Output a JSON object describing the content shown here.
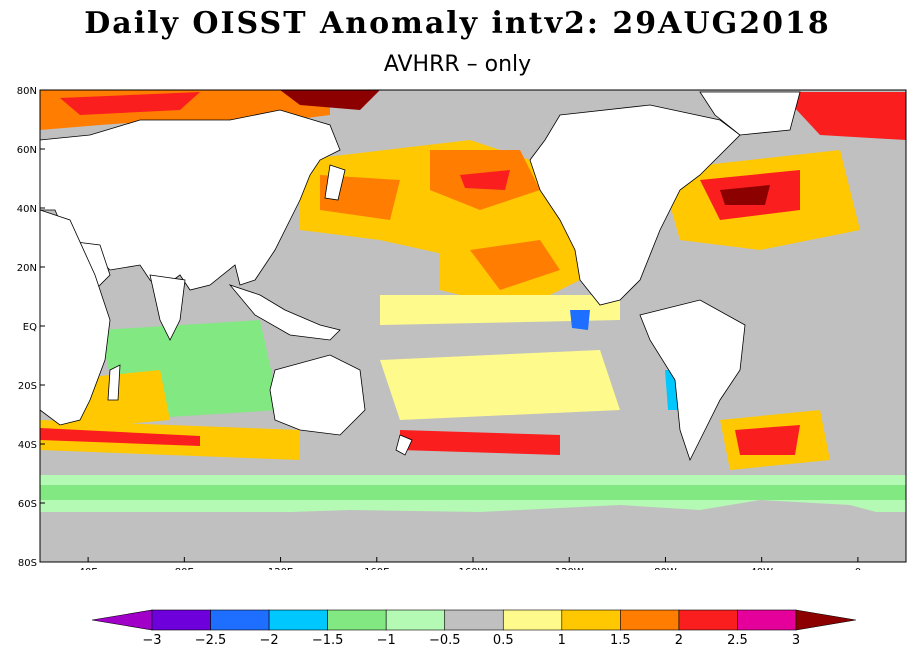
{
  "title": "Daily OISST Anomaly intv2: 29AUG2018",
  "subtitle": "AVHRR – only",
  "map": {
    "lat_range": [
      -80,
      80
    ],
    "lon_start": 20,
    "lon_end": 380,
    "lat_ticks": [
      {
        "value": 80,
        "label": "80N"
      },
      {
        "value": 60,
        "label": "60N"
      },
      {
        "value": 40,
        "label": "40N"
      },
      {
        "value": 20,
        "label": "20N"
      },
      {
        "value": 0,
        "label": "EQ"
      },
      {
        "value": -20,
        "label": "20S"
      },
      {
        "value": -40,
        "label": "40S"
      },
      {
        "value": -60,
        "label": "60S"
      },
      {
        "value": -80,
        "label": "80S"
      }
    ],
    "lon_ticks": [
      {
        "value": 40,
        "label": "40E"
      },
      {
        "value": 80,
        "label": "80E"
      },
      {
        "value": 120,
        "label": "120E"
      },
      {
        "value": 160,
        "label": "160E"
      },
      {
        "value": 200,
        "label": "160W"
      },
      {
        "value": 240,
        "label": "120W"
      },
      {
        "value": 280,
        "label": "80W"
      },
      {
        "value": 320,
        "label": "40W"
      },
      {
        "value": 360,
        "label": "0"
      }
    ],
    "land_color": "#ffffff",
    "neutral_color": "#c0c0c0"
  },
  "colorbar": {
    "colors": [
      "#a000c8",
      "#6e00dc",
      "#1e6eff",
      "#00c8ff",
      "#82e882",
      "#b4fab4",
      "#c0c0c0",
      "#fffa8c",
      "#ffc800",
      "#ff7d00",
      "#fa1e1e",
      "#e6009b",
      "#8c0000"
    ],
    "labels": [
      "−3",
      "−2.5",
      "−2",
      "−1.5",
      "−1",
      "−0.5",
      "0.5",
      "1",
      "1.5",
      "2",
      "2.5",
      "3"
    ]
  }
}
